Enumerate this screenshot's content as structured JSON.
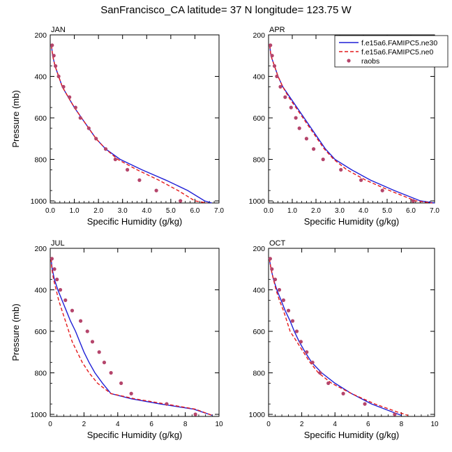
{
  "figure": {
    "title": "SanFrancisco_CA  latitude= 37 N longitude= 123.75 W"
  },
  "legend": {
    "entries": [
      {
        "label": "f.e15a6.FAMIPC5.ne30",
        "color": "#1f1fd6",
        "style": "solid"
      },
      {
        "label": "f.e15a6.FAMIPC5.ne0",
        "color": "#e41a1c",
        "style": "dashed"
      },
      {
        "label": "raobs",
        "color": "#b5456b",
        "style": "marker"
      }
    ],
    "placement": "top-right of APR panel"
  },
  "chart_data": [
    {
      "type": "line",
      "panel_label": "JAN",
      "xlabel": "Specific Humidity (g/kg)",
      "ylabel": "Pressure (mb)",
      "xlim": [
        0,
        7
      ],
      "ylim": [
        1010,
        200
      ],
      "xticks": [
        "0.0",
        "1.0",
        "2.0",
        "3.0",
        "4.0",
        "5.0",
        "6.0",
        "7.0"
      ],
      "yticks": [
        "200",
        "400",
        "600",
        "800",
        "1000"
      ],
      "series": [
        {
          "name": "f.e15a6.FAMIPC5.ne30",
          "color": "#1f1fd6",
          "dash": false,
          "points": [
            [
              0.05,
              250
            ],
            [
              0.1,
              300
            ],
            [
              0.2,
              350
            ],
            [
              0.35,
              400
            ],
            [
              0.5,
              450
            ],
            [
              0.75,
              500
            ],
            [
              1.0,
              550
            ],
            [
              1.3,
              600
            ],
            [
              1.6,
              650
            ],
            [
              1.9,
              700
            ],
            [
              2.3,
              750
            ],
            [
              2.9,
              800
            ],
            [
              3.8,
              850
            ],
            [
              4.8,
              900
            ],
            [
              5.7,
              950
            ],
            [
              6.4,
              1000
            ],
            [
              6.7,
              1010
            ]
          ]
        },
        {
          "name": "f.e15a6.FAMIPC5.ne0",
          "color": "#e41a1c",
          "dash": true,
          "points": [
            [
              0.05,
              250
            ],
            [
              0.1,
              300
            ],
            [
              0.2,
              350
            ],
            [
              0.35,
              400
            ],
            [
              0.5,
              450
            ],
            [
              0.75,
              500
            ],
            [
              1.0,
              550
            ],
            [
              1.3,
              600
            ],
            [
              1.6,
              650
            ],
            [
              1.9,
              700
            ],
            [
              2.3,
              750
            ],
            [
              2.8,
              800
            ],
            [
              3.6,
              850
            ],
            [
              4.5,
              900
            ],
            [
              5.3,
              950
            ],
            [
              6.0,
              1000
            ],
            [
              6.5,
              1010
            ]
          ]
        },
        {
          "name": "raobs",
          "color": "#b5456b",
          "markers": true,
          "points": [
            [
              0.08,
              250
            ],
            [
              0.15,
              300
            ],
            [
              0.22,
              350
            ],
            [
              0.35,
              400
            ],
            [
              0.55,
              450
            ],
            [
              0.8,
              500
            ],
            [
              1.05,
              550
            ],
            [
              1.25,
              600
            ],
            [
              1.6,
              650
            ],
            [
              1.9,
              700
            ],
            [
              2.3,
              750
            ],
            [
              2.7,
              800
            ],
            [
              3.2,
              850
            ],
            [
              3.7,
              900
            ],
            [
              4.4,
              950
            ],
            [
              5.4,
              1000
            ]
          ]
        }
      ]
    },
    {
      "type": "line",
      "panel_label": "APR",
      "xlabel": "Specific Humidity (g/kg)",
      "ylabel": "",
      "xlim": [
        0,
        7
      ],
      "ylim": [
        1010,
        200
      ],
      "xticks": [
        "0.0",
        "1.0",
        "2.0",
        "3.0",
        "4.0",
        "5.0",
        "6.0",
        "7.0"
      ],
      "yticks": [
        "200",
        "400",
        "600",
        "800",
        "1000"
      ],
      "series": [
        {
          "name": "f.e15a6.FAMIPC5.ne30",
          "color": "#1f1fd6",
          "dash": false,
          "points": [
            [
              0.05,
              250
            ],
            [
              0.1,
              300
            ],
            [
              0.25,
              350
            ],
            [
              0.4,
              400
            ],
            [
              0.6,
              450
            ],
            [
              0.9,
              500
            ],
            [
              1.2,
              550
            ],
            [
              1.5,
              600
            ],
            [
              1.8,
              650
            ],
            [
              2.1,
              700
            ],
            [
              2.4,
              750
            ],
            [
              2.8,
              800
            ],
            [
              3.5,
              850
            ],
            [
              4.3,
              900
            ],
            [
              5.3,
              950
            ],
            [
              6.4,
              1000
            ],
            [
              7.0,
              1010
            ]
          ]
        },
        {
          "name": "f.e15a6.FAMIPC5.ne0",
          "color": "#e41a1c",
          "dash": true,
          "points": [
            [
              0.05,
              250
            ],
            [
              0.1,
              300
            ],
            [
              0.25,
              350
            ],
            [
              0.4,
              400
            ],
            [
              0.6,
              450
            ],
            [
              0.85,
              500
            ],
            [
              1.15,
              550
            ],
            [
              1.45,
              600
            ],
            [
              1.75,
              650
            ],
            [
              2.05,
              700
            ],
            [
              2.35,
              750
            ],
            [
              2.75,
              800
            ],
            [
              3.3,
              850
            ],
            [
              4.1,
              900
            ],
            [
              5.1,
              950
            ],
            [
              6.2,
              1000
            ],
            [
              6.9,
              1010
            ]
          ]
        },
        {
          "name": "raobs",
          "color": "#b5456b",
          "markers": true,
          "points": [
            [
              0.08,
              250
            ],
            [
              0.15,
              300
            ],
            [
              0.25,
              350
            ],
            [
              0.35,
              400
            ],
            [
              0.5,
              450
            ],
            [
              0.7,
              500
            ],
            [
              0.95,
              550
            ],
            [
              1.15,
              600
            ],
            [
              1.3,
              650
            ],
            [
              1.6,
              700
            ],
            [
              1.9,
              750
            ],
            [
              2.3,
              800
            ],
            [
              3.05,
              850
            ],
            [
              3.9,
              900
            ],
            [
              4.8,
              950
            ],
            [
              6.1,
              1000
            ]
          ]
        }
      ]
    },
    {
      "type": "line",
      "panel_label": "JUL",
      "xlabel": "Specific Humidity (g/kg)",
      "ylabel": "Pressure (mb)",
      "xlim": [
        0,
        10
      ],
      "ylim": [
        1010,
        200
      ],
      "xticks": [
        "0",
        "2",
        "4",
        "6",
        "8",
        "10"
      ],
      "yticks": [
        "200",
        "400",
        "600",
        "800",
        "1000"
      ],
      "series": [
        {
          "name": "f.e15a6.FAMIPC5.ne30",
          "color": "#1f1fd6",
          "dash": false,
          "points": [
            [
              0.05,
              250
            ],
            [
              0.12,
              300
            ],
            [
              0.25,
              350
            ],
            [
              0.45,
              400
            ],
            [
              0.7,
              450
            ],
            [
              0.95,
              500
            ],
            [
              1.2,
              550
            ],
            [
              1.5,
              600
            ],
            [
              1.75,
              650
            ],
            [
              2.0,
              700
            ],
            [
              2.3,
              750
            ],
            [
              2.65,
              800
            ],
            [
              3.1,
              850
            ],
            [
              3.6,
              900
            ],
            [
              4.8,
              925
            ],
            [
              6.5,
              950
            ],
            [
              8.5,
              975
            ],
            [
              9.6,
              1005
            ]
          ]
        },
        {
          "name": "f.e15a6.FAMIPC5.ne0",
          "color": "#e41a1c",
          "dash": true,
          "points": [
            [
              0.05,
              250
            ],
            [
              0.1,
              300
            ],
            [
              0.2,
              350
            ],
            [
              0.35,
              400
            ],
            [
              0.5,
              450
            ],
            [
              0.7,
              500
            ],
            [
              0.9,
              550
            ],
            [
              1.1,
              600
            ],
            [
              1.3,
              650
            ],
            [
              1.6,
              700
            ],
            [
              1.9,
              750
            ],
            [
              2.3,
              800
            ],
            [
              2.8,
              850
            ],
            [
              3.6,
              900
            ],
            [
              5.0,
              925
            ],
            [
              6.8,
              950
            ],
            [
              8.6,
              975
            ],
            [
              9.6,
              1005
            ]
          ]
        },
        {
          "name": "raobs",
          "color": "#b5456b",
          "markers": true,
          "points": [
            [
              0.1,
              250
            ],
            [
              0.25,
              300
            ],
            [
              0.4,
              350
            ],
            [
              0.6,
              400
            ],
            [
              0.9,
              450
            ],
            [
              1.3,
              500
            ],
            [
              1.8,
              550
            ],
            [
              2.2,
              600
            ],
            [
              2.5,
              650
            ],
            [
              2.9,
              700
            ],
            [
              3.2,
              750
            ],
            [
              3.6,
              800
            ],
            [
              4.2,
              850
            ],
            [
              4.8,
              900
            ],
            [
              6.9,
              950
            ],
            [
              8.6,
              1000
            ]
          ]
        }
      ]
    },
    {
      "type": "line",
      "panel_label": "OCT",
      "xlabel": "Specific Humidity (g/kg)",
      "ylabel": "",
      "xlim": [
        0,
        10
      ],
      "ylim": [
        1010,
        200
      ],
      "xticks": [
        "0",
        "2",
        "4",
        "6",
        "8",
        "10"
      ],
      "yticks": [
        "200",
        "400",
        "600",
        "800",
        "1000"
      ],
      "series": [
        {
          "name": "f.e15a6.FAMIPC5.ne30",
          "color": "#1f1fd6",
          "dash": false,
          "points": [
            [
              0.05,
              250
            ],
            [
              0.15,
              300
            ],
            [
              0.3,
              350
            ],
            [
              0.5,
              400
            ],
            [
              0.75,
              450
            ],
            [
              1.0,
              500
            ],
            [
              1.3,
              550
            ],
            [
              1.55,
              600
            ],
            [
              1.85,
              650
            ],
            [
              2.2,
              700
            ],
            [
              2.6,
              750
            ],
            [
              3.2,
              800
            ],
            [
              4.0,
              850
            ],
            [
              5.0,
              900
            ],
            [
              6.2,
              950
            ],
            [
              7.5,
              990
            ],
            [
              8.0,
              1005
            ]
          ]
        },
        {
          "name": "f.e15a6.FAMIPC5.ne0",
          "color": "#e41a1c",
          "dash": true,
          "points": [
            [
              0.05,
              250
            ],
            [
              0.15,
              300
            ],
            [
              0.3,
              350
            ],
            [
              0.45,
              400
            ],
            [
              0.65,
              450
            ],
            [
              0.9,
              500
            ],
            [
              1.1,
              550
            ],
            [
              1.3,
              600
            ],
            [
              1.7,
              650
            ],
            [
              2.1,
              700
            ],
            [
              2.5,
              750
            ],
            [
              3.0,
              800
            ],
            [
              3.8,
              850
            ],
            [
              5.0,
              900
            ],
            [
              6.4,
              950
            ],
            [
              7.8,
              990
            ],
            [
              8.4,
              1005
            ]
          ]
        },
        {
          "name": "raobs",
          "color": "#b5456b",
          "markers": true,
          "points": [
            [
              0.1,
              250
            ],
            [
              0.2,
              300
            ],
            [
              0.4,
              350
            ],
            [
              0.65,
              400
            ],
            [
              0.9,
              450
            ],
            [
              1.2,
              500
            ],
            [
              1.45,
              550
            ],
            [
              1.7,
              600
            ],
            [
              1.95,
              650
            ],
            [
              2.3,
              700
            ],
            [
              2.65,
              750
            ],
            [
              3.1,
              800
            ],
            [
              3.6,
              850
            ],
            [
              4.5,
              900
            ],
            [
              5.8,
              950
            ],
            [
              7.6,
              1000
            ]
          ]
        }
      ]
    }
  ]
}
